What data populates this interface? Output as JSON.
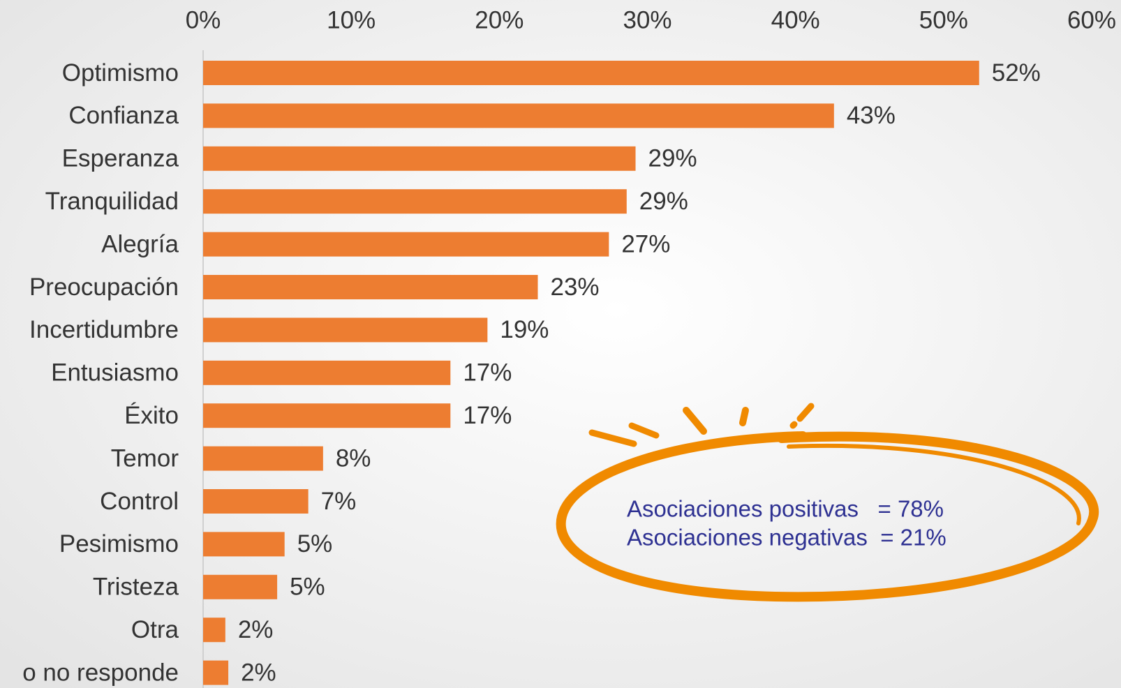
{
  "chart_data": {
    "type": "bar",
    "orientation": "horizontal",
    "categories": [
      "Optimismo",
      "Confianza",
      "Esperanza",
      "Tranquilidad",
      "Alegría",
      "Preocupación",
      "Incertidumbre",
      "Entusiasmo",
      "Éxito",
      "Temor",
      "Control",
      "Pesimismo",
      "Tristeza",
      "Otra",
      "o no responde"
    ],
    "values": [
      52.4,
      42.6,
      29.2,
      28.6,
      27.4,
      22.6,
      19.2,
      16.7,
      16.7,
      8.1,
      7.1,
      5.5,
      5.0,
      1.5,
      1.7
    ],
    "value_labels": [
      "52%",
      "43%",
      "29%",
      "29%",
      "27%",
      "23%",
      "19%",
      "17%",
      "17%",
      "8%",
      "7%",
      "5%",
      "5%",
      "2%",
      "2%"
    ],
    "color": "#ed7d31",
    "xlim": [
      0,
      60
    ],
    "xticks": [
      {
        "value": 0,
        "label": "0%"
      },
      {
        "value": 10,
        "label": "10%"
      },
      {
        "value": 20,
        "label": "20%"
      },
      {
        "value": 30,
        "label": "30%"
      },
      {
        "value": 40,
        "label": "40%"
      },
      {
        "value": 50,
        "label": "50%"
      },
      {
        "value": 60,
        "label": "60%"
      }
    ],
    "annotations": [
      "Asociaciones positivas   = 78%",
      "Asociaciones negativas  = 21%"
    ]
  }
}
